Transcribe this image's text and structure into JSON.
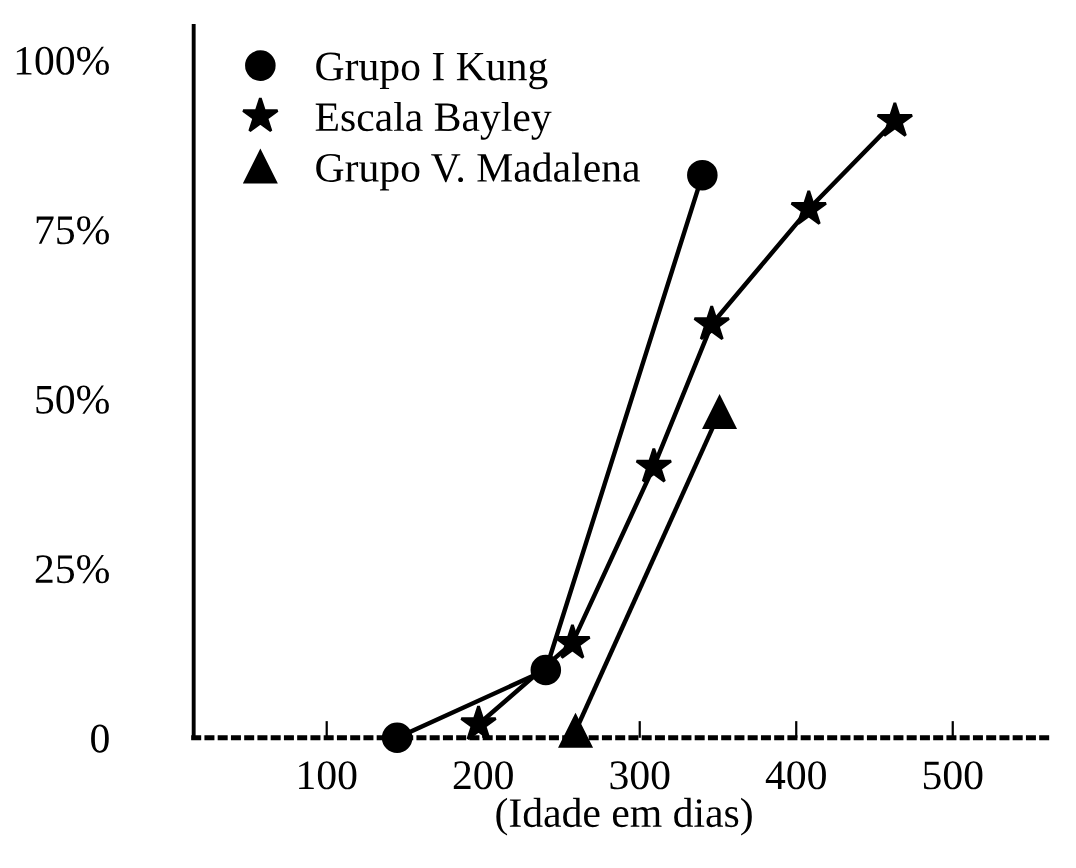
{
  "chart_data": {
    "type": "line",
    "xlabel": "(Idade em dias)",
    "xlim": [
      15,
      565
    ],
    "xticks": [
      100,
      200,
      300,
      400,
      500
    ],
    "ylim": [
      0,
      105
    ],
    "yticks": [
      {
        "value": 0,
        "label": "0"
      },
      {
        "value": 25,
        "label": "25%"
      },
      {
        "value": 50,
        "label": "50%"
      },
      {
        "value": 75,
        "label": "75%"
      },
      {
        "value": 100,
        "label": "100%"
      }
    ],
    "legend": "top left",
    "grid": false,
    "series": [
      {
        "name": "Grupo I Kung",
        "color": "#000000",
        "marker": "circle",
        "x": [
          145,
          240,
          340
        ],
        "values": [
          0,
          10,
          83
        ]
      },
      {
        "name": "Escala Bayley",
        "color": "#000000",
        "marker": "star",
        "x": [
          197,
          257,
          309,
          346,
          408,
          463
        ],
        "values": [
          2,
          14,
          40,
          61,
          78,
          91
        ]
      },
      {
        "name": "Grupo V. Madalena",
        "color": "#000000",
        "marker": "triangle",
        "x": [
          259,
          351
        ],
        "values": [
          1,
          48
        ]
      }
    ]
  }
}
